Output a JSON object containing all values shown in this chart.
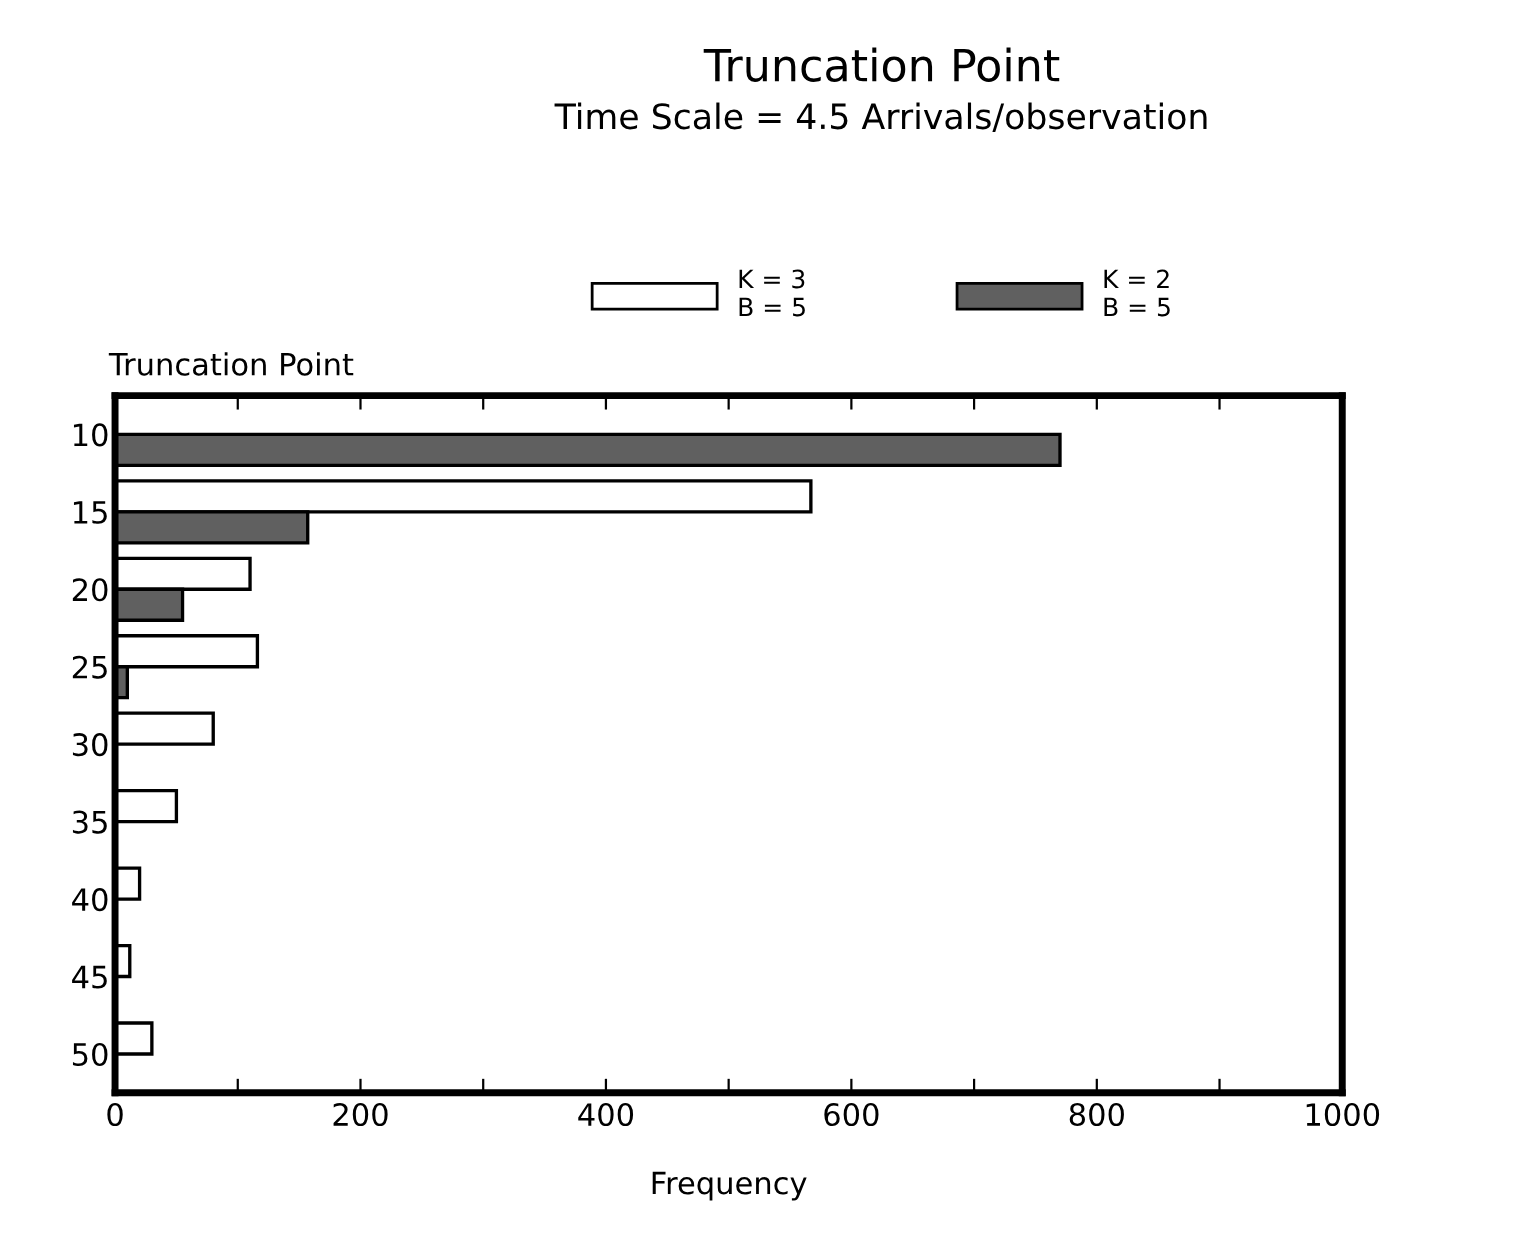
{
  "chart_data": {
    "type": "bar",
    "orientation": "horizontal",
    "title": "Truncation Point",
    "subtitle": "Time Scale = 4.5 Arrivals/observation",
    "ylabel": "Truncation Point",
    "xlabel": "Frequency",
    "categories": [
      "10",
      "15",
      "20",
      "25",
      "30",
      "35",
      "40",
      "45",
      "50"
    ],
    "series": [
      {
        "name": "K = 3\nB = 5",
        "color": "#ffffff",
        "values": [
          null,
          567,
          110,
          116,
          80,
          50,
          20,
          12,
          30
        ]
      },
      {
        "name": "K = 2\nB = 5",
        "color": "#606060",
        "values": [
          770,
          157,
          55,
          10,
          null,
          null,
          null,
          null,
          null
        ]
      }
    ],
    "xlim": [
      0,
      1000
    ],
    "xticks": [
      0,
      {
        "value": 100,
        "label": null
      },
      200,
      {
        "value": 300,
        "label": null
      },
      400,
      {
        "value": 500,
        "label": null
      },
      600,
      {
        "value": 700,
        "label": null
      },
      800,
      {
        "value": 900,
        "label": null
      },
      1000
    ],
    "legend": "top"
  }
}
